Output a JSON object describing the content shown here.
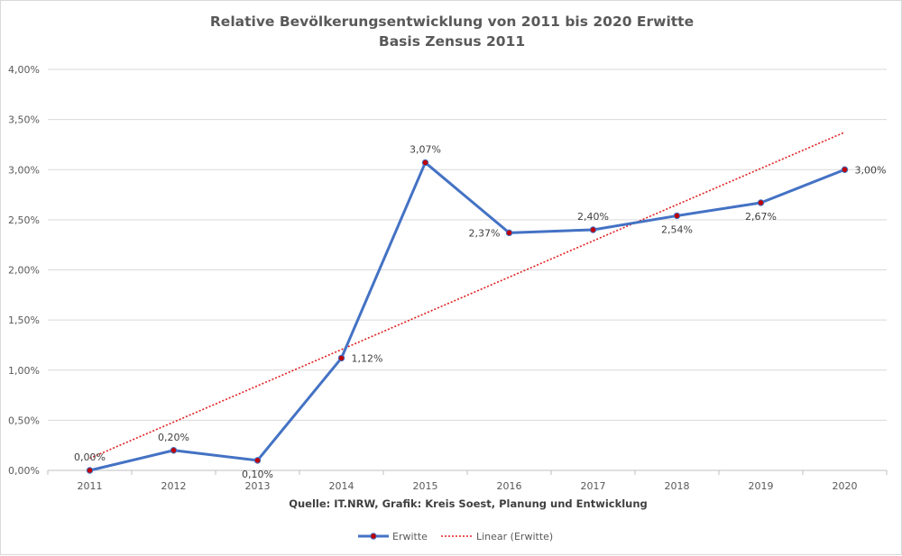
{
  "chart_data": {
    "type": "line",
    "title": "Relative Bevölkerungsentwicklung von 2011 bis 2020 Erwitte",
    "subtitle": "Basis Zensus 2011",
    "source": "Quelle: IT.NRW, Grafik: Kreis Soest, Planung und Entwicklung",
    "categories": [
      "2011",
      "2012",
      "2013",
      "2014",
      "2015",
      "2016",
      "2017",
      "2018",
      "2019",
      "2020"
    ],
    "y_ticks": [
      "0,00%",
      "0,50%",
      "1,00%",
      "1,50%",
      "2,00%",
      "2,50%",
      "3,00%",
      "3,50%",
      "4,00%"
    ],
    "ylim": [
      0,
      4
    ],
    "grid": true,
    "legend_position": "bottom",
    "series": [
      {
        "name": "Erwitte",
        "values": [
          0.0,
          0.2,
          0.1,
          1.12,
          3.07,
          2.37,
          2.4,
          2.54,
          2.67,
          3.0
        ],
        "labels": [
          "0,00%",
          "0,20%",
          "0,10%",
          "1,12%",
          "3,07%",
          "2,37%",
          "2,40%",
          "2,54%",
          "2,67%",
          "3,00%"
        ],
        "color": "#4472c4",
        "marker_color": "#c00000"
      }
    ],
    "trendline": {
      "name": "Linear (Erwitte)",
      "color": "#e02020"
    }
  }
}
